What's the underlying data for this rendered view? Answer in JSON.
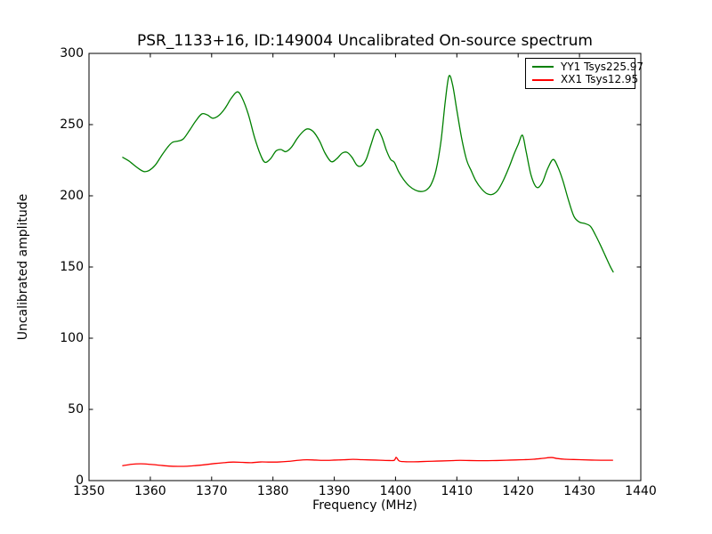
{
  "figure": {
    "background": "#ffffff",
    "frame_color": "#000000",
    "text_color": "#000000"
  },
  "chart_data": {
    "type": "line",
    "title": "PSR_1133+16, ID:149004 Uncalibrated On-source spectrum",
    "xlabel": "Frequency (MHz)",
    "ylabel": "Uncalibrated amplitude",
    "xlim": [
      1350,
      1440
    ],
    "ylim": [
      0,
      300
    ],
    "x_ticks": [
      1350,
      1360,
      1370,
      1380,
      1390,
      1400,
      1410,
      1420,
      1430,
      1440
    ],
    "y_ticks": [
      0,
      50,
      100,
      150,
      200,
      250,
      300
    ],
    "grid": false,
    "tick_direction": "in",
    "legend": {
      "position": "upper right",
      "entries": [
        {
          "label": "YY1 Tsys225.97",
          "color": "#008000"
        },
        {
          "label": "XX1 Tsys12.95",
          "color": "#ff0000"
        }
      ]
    },
    "series": [
      {
        "name": "YY1 Tsys225.97",
        "color": "#008000",
        "points": [
          [
            1355.5,
            227
          ],
          [
            1356.5,
            224.5
          ],
          [
            1357.5,
            221
          ],
          [
            1358.3,
            218.5
          ],
          [
            1359,
            217
          ],
          [
            1359.8,
            217.8
          ],
          [
            1360.8,
            221.5
          ],
          [
            1361.8,
            228
          ],
          [
            1362.8,
            234
          ],
          [
            1363.6,
            237.5
          ],
          [
            1364.6,
            238.5
          ],
          [
            1365.4,
            240
          ],
          [
            1366.4,
            246
          ],
          [
            1367.4,
            252.5
          ],
          [
            1368.4,
            257.5
          ],
          [
            1369.3,
            256.8
          ],
          [
            1370.2,
            254.5
          ],
          [
            1371.2,
            256.5
          ],
          [
            1372.2,
            261.5
          ],
          [
            1373.2,
            268.5
          ],
          [
            1374.2,
            273
          ],
          [
            1375,
            268.5
          ],
          [
            1376,
            257
          ],
          [
            1377,
            241
          ],
          [
            1378,
            228.5
          ],
          [
            1378.7,
            223.5
          ],
          [
            1379.6,
            226
          ],
          [
            1380.5,
            231.5
          ],
          [
            1381.3,
            232.5
          ],
          [
            1382.1,
            231
          ],
          [
            1383,
            234
          ],
          [
            1384,
            240.5
          ],
          [
            1385,
            245.5
          ],
          [
            1385.7,
            247
          ],
          [
            1386.6,
            245
          ],
          [
            1387.6,
            238.5
          ],
          [
            1388.5,
            230
          ],
          [
            1389.5,
            224
          ],
          [
            1390.4,
            226
          ],
          [
            1391.3,
            230
          ],
          [
            1392.1,
            230.5
          ],
          [
            1392.9,
            227
          ],
          [
            1393.7,
            221.5
          ],
          [
            1394.4,
            221
          ],
          [
            1395.2,
            225.5
          ],
          [
            1396,
            236
          ],
          [
            1396.9,
            246.5
          ],
          [
            1397.7,
            242
          ],
          [
            1398.5,
            232
          ],
          [
            1399.2,
            225.5
          ],
          [
            1399.8,
            223.5
          ],
          [
            1400.5,
            217
          ],
          [
            1401.3,
            211.5
          ],
          [
            1402.2,
            207
          ],
          [
            1403.2,
            204
          ],
          [
            1404.1,
            203
          ],
          [
            1405,
            204
          ],
          [
            1405.8,
            208
          ],
          [
            1406.6,
            218
          ],
          [
            1407.4,
            238
          ],
          [
            1408.1,
            266
          ],
          [
            1408.7,
            284
          ],
          [
            1409.3,
            278
          ],
          [
            1410,
            260
          ],
          [
            1410.8,
            240
          ],
          [
            1411.6,
            225
          ],
          [
            1412.3,
            218
          ],
          [
            1413.1,
            210.5
          ],
          [
            1414,
            205
          ],
          [
            1414.9,
            201.5
          ],
          [
            1415.8,
            201
          ],
          [
            1416.7,
            204
          ],
          [
            1417.6,
            211
          ],
          [
            1418.6,
            221
          ],
          [
            1419.3,
            229
          ],
          [
            1420,
            236
          ],
          [
            1420.7,
            242.5
          ],
          [
            1421.3,
            231
          ],
          [
            1422.1,
            214.5
          ],
          [
            1423,
            206
          ],
          [
            1423.9,
            209
          ],
          [
            1424.8,
            219
          ],
          [
            1425.7,
            225.5
          ],
          [
            1426.5,
            220
          ],
          [
            1427.3,
            210.5
          ],
          [
            1428.2,
            197
          ],
          [
            1429.1,
            185.5
          ],
          [
            1430,
            181.5
          ],
          [
            1430.9,
            180.5
          ],
          [
            1431.8,
            178.5
          ],
          [
            1432.6,
            172.5
          ],
          [
            1433.4,
            165.5
          ],
          [
            1434.2,
            158
          ],
          [
            1435,
            150.5
          ],
          [
            1435.5,
            146.5
          ]
        ]
      },
      {
        "name": "XX1 Tsys12.95",
        "color": "#ff0000",
        "points": [
          [
            1355.5,
            10.5
          ],
          [
            1357,
            11.5
          ],
          [
            1358.5,
            11.8
          ],
          [
            1360,
            11.4
          ],
          [
            1361.5,
            10.8
          ],
          [
            1363,
            10.2
          ],
          [
            1364.5,
            10
          ],
          [
            1366,
            10.1
          ],
          [
            1367.5,
            10.6
          ],
          [
            1369,
            11.2
          ],
          [
            1370.5,
            12
          ],
          [
            1372,
            12.6
          ],
          [
            1373.5,
            13
          ],
          [
            1375,
            12.8
          ],
          [
            1376.5,
            12.6
          ],
          [
            1378,
            13.1
          ],
          [
            1379.5,
            13
          ],
          [
            1381,
            13.1
          ],
          [
            1382.5,
            13.5
          ],
          [
            1384,
            14.2
          ],
          [
            1385.5,
            14.6
          ],
          [
            1387,
            14.4
          ],
          [
            1388.5,
            14.2
          ],
          [
            1390,
            14.4
          ],
          [
            1391.5,
            14.6
          ],
          [
            1393,
            14.9
          ],
          [
            1394.5,
            14.7
          ],
          [
            1396,
            14.5
          ],
          [
            1397.5,
            14.3
          ],
          [
            1399,
            14.1
          ],
          [
            1399.8,
            14.3
          ],
          [
            1400.1,
            16.3
          ],
          [
            1400.6,
            13.8
          ],
          [
            1401.5,
            13.3
          ],
          [
            1403,
            13.2
          ],
          [
            1404.5,
            13.4
          ],
          [
            1406,
            13.6
          ],
          [
            1407.5,
            13.8
          ],
          [
            1409,
            14
          ],
          [
            1410.5,
            14.2
          ],
          [
            1412,
            14.1
          ],
          [
            1413.5,
            14
          ],
          [
            1415,
            14
          ],
          [
            1416.5,
            14.1
          ],
          [
            1418,
            14.3
          ],
          [
            1419.5,
            14.5
          ],
          [
            1421,
            14.7
          ],
          [
            1422.5,
            15
          ],
          [
            1424,
            15.6
          ],
          [
            1425.4,
            16.2
          ],
          [
            1426.4,
            15.5
          ],
          [
            1427.6,
            15
          ],
          [
            1429,
            14.8
          ],
          [
            1430.5,
            14.6
          ],
          [
            1432,
            14.4
          ],
          [
            1433.5,
            14.3
          ],
          [
            1435.4,
            14.3
          ]
        ]
      }
    ]
  }
}
